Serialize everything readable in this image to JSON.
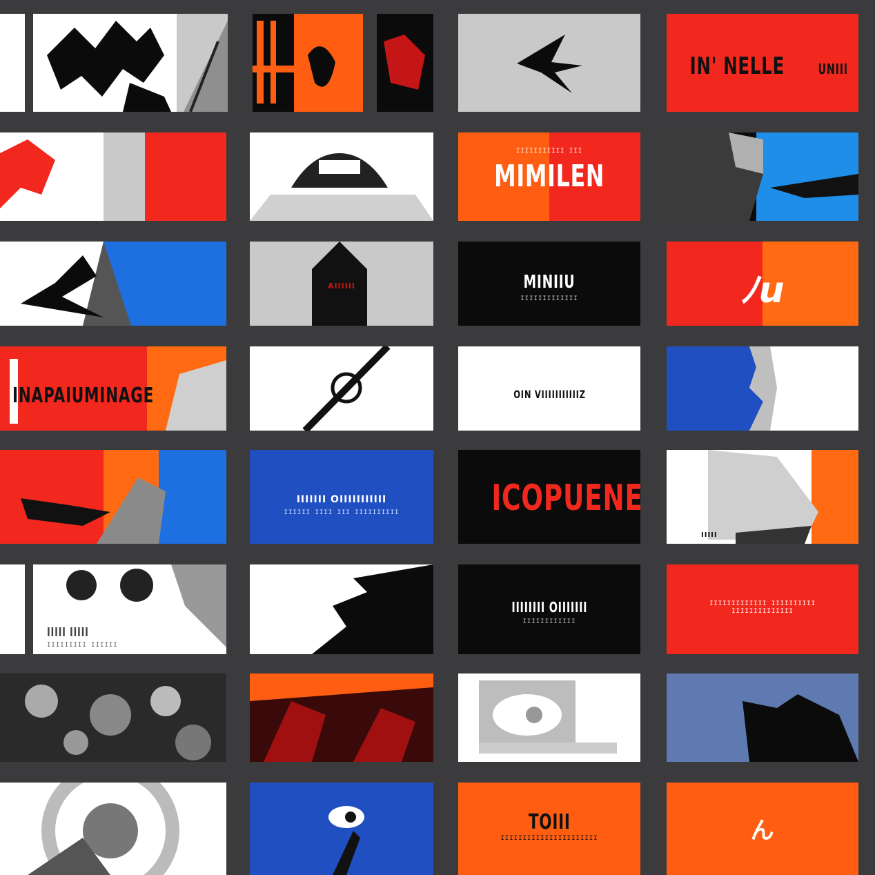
{
  "colors": {
    "background": "#3b3b3d",
    "red": "#f2281f",
    "orange": "#ff5e12",
    "blue": "#1f56c8",
    "sky": "#1e8ee8",
    "black": "#0b0b0b",
    "grey": "#c9c9c9",
    "white": "#ffffff"
  },
  "tiles": {
    "r1c3_caption": "IN' NELLE",
    "r1c3_sub": "UNIII",
    "r2c2_caption": "MIMILEN",
    "r2c2_sub": "IIIIIIIIIII III",
    "r3c2_caption": "MINIIU",
    "r3c2_sub": "IIIIIIIIIIIII",
    "r3c1_caption": "AIIIIII",
    "r3c3_caption": "ﾉu",
    "r4c0_caption": "INAPAIUMINAGE",
    "r4c2_caption": "OIN VIIIIIIIIIIIZ",
    "r5c1_caption": "IIIIIII OIIIIIIIIIII",
    "r5c1_sub": "IIIIII IIII III IIIIIIIIII",
    "r5c2_caption": "ICOPUENER",
    "r5c3_caption": "IIIII",
    "r6c0_caption": "IIIII IIIII",
    "r6c0_sub": "IIIIIIIII IIIIII",
    "r6c2_caption": "IIIIIIII OIIIIIII",
    "r6c2_sub": "IIIIIIIIIIII",
    "r6c3_caption": "IIIIIIIIIIIII IIIIIIIIII IIIIIIIIIIIIII",
    "r8c2_caption": "TOIII",
    "r8c2_sub": "IIIIIIIIIIIIIIIIIIIIII",
    "r8c3_caption": "ん"
  }
}
